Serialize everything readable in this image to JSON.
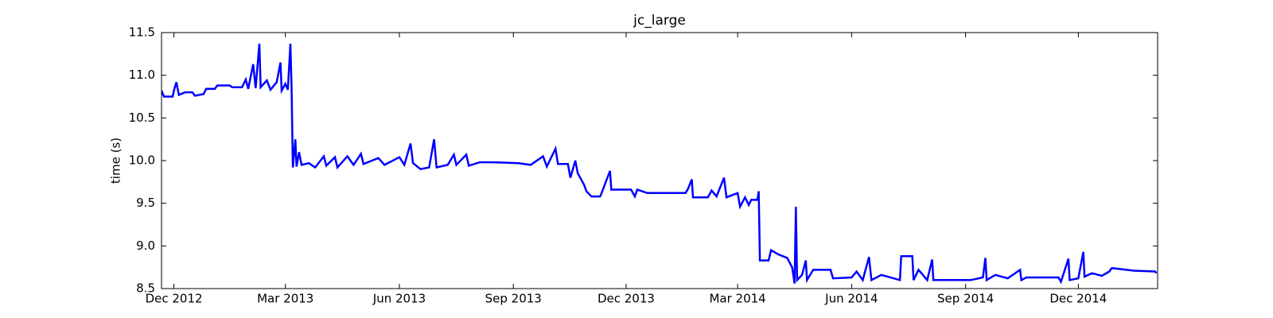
{
  "chart_data": {
    "type": "line",
    "title": "jc_large",
    "y_label": "time (s)",
    "xlim": [
      "2012-11-21",
      "2015-02-03"
    ],
    "xticks": [
      {
        "value": "2012-12-01",
        "label": "Dec 2012"
      },
      {
        "value": "2013-03-01",
        "label": "Mar 2013"
      },
      {
        "value": "2013-06-01",
        "label": "Jun 2013"
      },
      {
        "value": "2013-09-01",
        "label": "Sep 2013"
      },
      {
        "value": "2013-12-01",
        "label": "Dec 2013"
      },
      {
        "value": "2014-03-01",
        "label": "Mar 2014"
      },
      {
        "value": "2014-06-01",
        "label": "Jun 2014"
      },
      {
        "value": "2014-09-01",
        "label": "Sep 2014"
      },
      {
        "value": "2014-12-01",
        "label": "Dec 2014"
      }
    ],
    "ylim": [
      8.5,
      11.5
    ],
    "yticks": [
      8.5,
      {
        "value": 9,
        "label": "9.0"
      },
      9.5,
      {
        "value": 10,
        "label": "10.0"
      },
      10.5,
      {
        "value": 11,
        "label": "11.0"
      },
      11.5
    ],
    "x": [
      "2012-11-21",
      "2012-11-23",
      "2012-11-30",
      "2012-12-01",
      "2012-12-03",
      "2012-12-05",
      "2012-12-10",
      "2012-12-16",
      "2012-12-18",
      "2012-12-25",
      "2012-12-27",
      "2013-01-03",
      "2013-01-05",
      "2013-01-15",
      "2013-01-17",
      "2013-01-25",
      "2013-01-28",
      "2013-01-30",
      "2013-02-03",
      "2013-02-05",
      "2013-02-08",
      "2013-02-09",
      "2013-02-14",
      "2013-02-17",
      "2013-02-22",
      "2013-02-25",
      "2013-02-26",
      "2013-03-01",
      "2013-03-03",
      "2013-03-05",
      "2013-03-06",
      "2013-03-07",
      "2013-03-09",
      "2013-03-10",
      "2013-03-12",
      "2013-03-14",
      "2013-03-20",
      "2013-03-25",
      "2013-04-01",
      "2013-04-03",
      "2013-04-10",
      "2013-04-12",
      "2013-04-20",
      "2013-04-25",
      "2013-05-01",
      "2013-05-03",
      "2013-05-15",
      "2013-05-20",
      "2013-06-01",
      "2013-06-05",
      "2013-06-10",
      "2013-06-12",
      "2013-06-18",
      "2013-06-25",
      "2013-06-29",
      "2013-07-01",
      "2013-07-10",
      "2013-07-15",
      "2013-07-17",
      "2013-07-25",
      "2013-07-27",
      "2013-08-05",
      "2013-08-15",
      "2013-09-05",
      "2013-09-15",
      "2013-09-25",
      "2013-09-28",
      "2013-10-05",
      "2013-10-07",
      "2013-10-15",
      "2013-10-17",
      "2013-10-21",
      "2013-10-23",
      "2013-10-28",
      "2013-10-30",
      "2013-11-03",
      "2013-11-10",
      "2013-11-12",
      "2013-11-18",
      "2013-11-19",
      "2013-12-05",
      "2013-12-08",
      "2013-12-10",
      "2013-12-18",
      "2014-01-18",
      "2014-01-20",
      "2014-01-23",
      "2014-01-24",
      "2014-02-05",
      "2014-02-08",
      "2014-02-12",
      "2014-02-18",
      "2014-02-20",
      "2014-03-01",
      "2014-03-03",
      "2014-03-07",
      "2014-03-10",
      "2014-03-12",
      "2014-03-17",
      "2014-03-18",
      "2014-03-19",
      "2014-03-26",
      "2014-03-28",
      "2014-04-03",
      "2014-04-10",
      "2014-04-14",
      "2014-04-16",
      "2014-04-17",
      "2014-04-18",
      "2014-04-22",
      "2014-04-25",
      "2014-04-26",
      "2014-05-01",
      "2014-05-15",
      "2014-05-17",
      "2014-06-01",
      "2014-06-05",
      "2014-06-10",
      "2014-06-15",
      "2014-06-17",
      "2014-06-25",
      "2014-07-10",
      "2014-07-11",
      "2014-07-20",
      "2014-07-21",
      "2014-07-25",
      "2014-08-01",
      "2014-08-05",
      "2014-08-06",
      "2014-09-05",
      "2014-09-15",
      "2014-09-17",
      "2014-09-18",
      "2014-09-25",
      "2014-10-05",
      "2014-10-15",
      "2014-10-16",
      "2014-10-20",
      "2014-11-15",
      "2014-11-17",
      "2014-11-23",
      "2014-11-24",
      "2014-12-01",
      "2014-12-05",
      "2014-12-06",
      "2014-12-12",
      "2014-12-20",
      "2014-12-26",
      "2014-12-28",
      "2015-01-15",
      "2015-02-01",
      "2015-02-02"
    ],
    "series": [
      {
        "name": "jc_large",
        "color": "#0000ff",
        "values": [
          10.82,
          10.75,
          10.75,
          10.82,
          10.92,
          10.77,
          10.8,
          10.8,
          10.76,
          10.78,
          10.84,
          10.84,
          10.88,
          10.88,
          10.86,
          10.86,
          10.95,
          10.84,
          11.13,
          10.85,
          11.37,
          10.86,
          10.94,
          10.83,
          10.92,
          11.15,
          10.82,
          10.9,
          10.83,
          11.37,
          10.85,
          9.92,
          10.25,
          9.93,
          10.1,
          9.95,
          9.97,
          9.92,
          10.05,
          9.94,
          10.04,
          9.92,
          10.05,
          9.95,
          10.08,
          9.96,
          10.03,
          9.95,
          10.04,
          9.95,
          10.2,
          9.97,
          9.9,
          9.92,
          10.25,
          9.92,
          9.95,
          10.07,
          9.95,
          10.07,
          9.94,
          9.98,
          9.98,
          9.97,
          9.95,
          10.05,
          9.93,
          10.14,
          9.96,
          9.96,
          9.8,
          10.0,
          9.85,
          9.72,
          9.64,
          9.58,
          9.58,
          9.65,
          9.88,
          9.66,
          9.66,
          9.58,
          9.66,
          9.62,
          9.62,
          9.67,
          9.78,
          9.57,
          9.57,
          9.65,
          9.58,
          9.8,
          9.57,
          9.62,
          9.46,
          9.57,
          9.48,
          9.54,
          9.54,
          9.64,
          8.83,
          8.83,
          8.95,
          8.9,
          8.86,
          8.75,
          8.56,
          9.46,
          8.6,
          8.66,
          8.83,
          8.6,
          8.72,
          8.72,
          8.62,
          8.63,
          8.7,
          8.6,
          8.87,
          8.6,
          8.66,
          8.6,
          8.88,
          8.88,
          8.6,
          8.72,
          8.6,
          8.84,
          8.6,
          8.6,
          8.63,
          8.86,
          8.6,
          8.66,
          8.62,
          8.72,
          8.6,
          8.63,
          8.63,
          8.58,
          8.85,
          8.6,
          8.62,
          8.93,
          8.64,
          8.68,
          8.65,
          8.7,
          8.74,
          8.71,
          8.7,
          8.68
        ]
      }
    ]
  }
}
